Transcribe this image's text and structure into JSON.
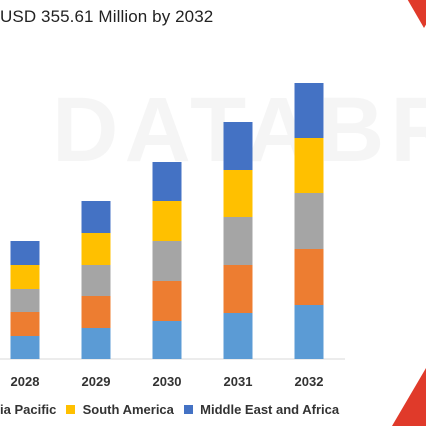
{
  "chart_data": {
    "type": "bar",
    "stacked": true,
    "title": "USD 355.61 Million by 2032",
    "categories": [
      "2028",
      "2029",
      "2030",
      "2031",
      "2032"
    ],
    "series": [
      {
        "name": "",
        "color": "#5b9bd5",
        "values": [
          23,
          31,
          38,
          46,
          54
        ]
      },
      {
        "name": "",
        "color": "#ed7d31",
        "values": [
          24,
          32,
          40,
          48,
          56
        ]
      },
      {
        "name": "",
        "color": "#a5a5a5",
        "values": [
          23,
          31,
          40,
          48,
          56
        ]
      },
      {
        "name": "South America",
        "color": "#ffc000",
        "values": [
          24,
          32,
          40,
          47,
          55
        ]
      },
      {
        "name": "Middle East and Africa",
        "color": "#4472c4",
        "values": [
          24,
          32,
          39,
          48,
          55
        ]
      }
    ],
    "legend": [
      {
        "label": "ia Pacific",
        "color": "#ed7d31"
      },
      {
        "label": "South America",
        "color": "#ffc000"
      },
      {
        "label": "Middle East and Africa",
        "color": "#4472c4"
      }
    ],
    "ylim": [
      0,
      276
    ],
    "grid": false,
    "legend_position": "bottom"
  }
}
